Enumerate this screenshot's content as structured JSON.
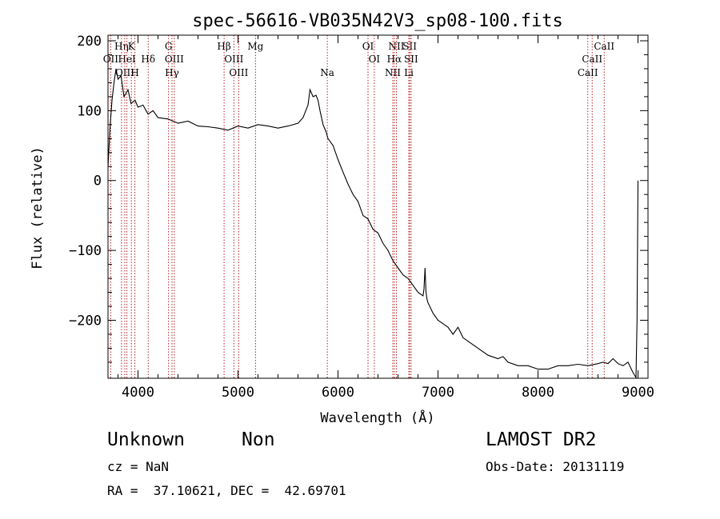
{
  "chart_data": {
    "type": "line",
    "title": "spec-56616-VB035N42V3_sp08-100.fits",
    "xlabel": "Wavelength (Å)",
    "ylabel": "Flux (relative)",
    "xlim": [
      3700,
      9100
    ],
    "ylim": [
      -283,
      208
    ],
    "xticks": [
      4000,
      5000,
      6000,
      7000,
      8000,
      9000
    ],
    "xtick_labels": [
      "4000",
      "5000",
      "6000",
      "7000",
      "8000",
      "9000"
    ],
    "yticks": [
      200,
      100,
      0,
      -100,
      -200
    ],
    "ytick_labels": [
      "200",
      "100",
      "0",
      "−100",
      "−200"
    ],
    "grid": false,
    "line_color": "#000000",
    "marker_color": "#b22222",
    "spectrum": {
      "x": [
        3700,
        3720,
        3740,
        3760,
        3780,
        3800,
        3830,
        3860,
        3900,
        3930,
        3970,
        4000,
        4050,
        4100,
        4150,
        4200,
        4300,
        4400,
        4500,
        4600,
        4700,
        4800,
        4900,
        5000,
        5100,
        5200,
        5300,
        5400,
        5500,
        5600,
        5650,
        5700,
        5720,
        5750,
        5780,
        5800,
        5820,
        5850,
        5880,
        5900,
        5950,
        6000,
        6050,
        6100,
        6150,
        6200,
        6250,
        6300,
        6350,
        6400,
        6450,
        6500,
        6550,
        6600,
        6650,
        6700,
        6750,
        6800,
        6850,
        6860,
        6870,
        6880,
        6890,
        6900,
        6950,
        7000,
        7050,
        7100,
        7150,
        7200,
        7250,
        7300,
        7400,
        7500,
        7600,
        7650,
        7700,
        7800,
        7900,
        8000,
        8100,
        8200,
        8300,
        8400,
        8500,
        8600,
        8650,
        8700,
        8750,
        8800,
        8850,
        8900,
        8950,
        8980,
        8990,
        9000
      ],
      "y": [
        20,
        75,
        115,
        140,
        160,
        145,
        150,
        120,
        130,
        110,
        115,
        105,
        108,
        95,
        100,
        90,
        88,
        82,
        85,
        78,
        77,
        75,
        72,
        78,
        75,
        80,
        78,
        75,
        78,
        82,
        90,
        108,
        130,
        120,
        122,
        115,
        100,
        80,
        70,
        60,
        50,
        30,
        12,
        -5,
        -20,
        -30,
        -50,
        -55,
        -70,
        -75,
        -90,
        -100,
        -115,
        -125,
        -135,
        -140,
        -150,
        -160,
        -165,
        -155,
        -125,
        -160,
        -170,
        -175,
        -190,
        -200,
        -205,
        -210,
        -220,
        -210,
        -225,
        -230,
        -240,
        -250,
        -255,
        -252,
        -260,
        -265,
        -265,
        -270,
        -270,
        -265,
        -265,
        -263,
        -265,
        -262,
        -260,
        -262,
        -255,
        -262,
        -265,
        -260,
        -275,
        -282,
        -200,
        0
      ]
    },
    "lines": [
      {
        "name": "Hη",
        "wavelength": 3835,
        "row": 0
      },
      {
        "name": "K",
        "wavelength": 3934,
        "row": 0
      },
      {
        "name": "G",
        "wavelength": 4305,
        "row": 0
      },
      {
        "name": "Hβ",
        "wavelength": 4861,
        "row": 0
      },
      {
        "name": "Mg",
        "wavelength": 5175,
        "row": 0
      },
      {
        "name": "OI",
        "wavelength": 6300,
        "row": 0
      },
      {
        "name": "NII",
        "wavelength": 6584,
        "row": 0
      },
      {
        "name": "SII",
        "wavelength": 6717,
        "row": 0
      },
      {
        "name": "CaII",
        "wavelength": 8662,
        "row": 0
      },
      {
        "name": "OII",
        "wavelength": 3727,
        "row": 1
      },
      {
        "name": "HeI",
        "wavelength": 3889,
        "row": 1
      },
      {
        "name": "Hδ",
        "wavelength": 4102,
        "row": 1
      },
      {
        "name": "OIII",
        "wavelength": 4363,
        "row": 1
      },
      {
        "name": "OIII",
        "wavelength": 4959,
        "row": 1
      },
      {
        "name": "OI",
        "wavelength": 6363,
        "row": 1
      },
      {
        "name": "Hα",
        "wavelength": 6563,
        "row": 1
      },
      {
        "name": "SII",
        "wavelength": 6731,
        "row": 1
      },
      {
        "name": "CaII",
        "wavelength": 8542,
        "row": 1
      },
      {
        "name": "OIII",
        "wavelength": 3868,
        "row": 2
      },
      {
        "name": "H",
        "wavelength": 3969,
        "row": 2
      },
      {
        "name": "Hγ",
        "wavelength": 4340,
        "row": 2
      },
      {
        "name": "OIII",
        "wavelength": 5007,
        "row": 2
      },
      {
        "name": "Na",
        "wavelength": 5893,
        "row": 2
      },
      {
        "name": "NII",
        "wavelength": 6548,
        "row": 2
      },
      {
        "name": "Li",
        "wavelength": 6708,
        "row": 2
      },
      {
        "name": "CaII",
        "wavelength": 8498,
        "row": 2
      }
    ]
  },
  "footer": {
    "class_label": "Unknown",
    "subclass_label": "Non",
    "survey": "LAMOST DR2",
    "cz": "cz = NaN",
    "obs_date": "Obs-Date: 20131119",
    "coords": "RA =  37.10621, DEC =  42.69701"
  }
}
